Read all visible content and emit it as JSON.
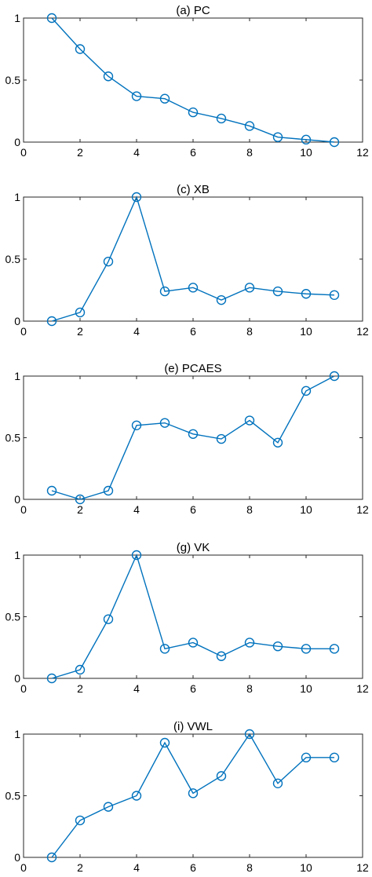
{
  "chart_data": [
    {
      "type": "line",
      "title": "(a) PC",
      "xlabel": "",
      "ylabel": "",
      "xlim": [
        0,
        12
      ],
      "ylim": [
        0,
        1
      ],
      "xticks": [
        "0",
        "2",
        "4",
        "6",
        "8",
        "10",
        "12"
      ],
      "yticks": [
        "0",
        "0.5",
        "1"
      ],
      "x": [
        1,
        2,
        3,
        4,
        5,
        6,
        7,
        8,
        9,
        10,
        11
      ],
      "values": [
        1.0,
        0.75,
        0.53,
        0.37,
        0.35,
        0.24,
        0.19,
        0.13,
        0.04,
        0.02,
        0.0
      ],
      "marker": "circle",
      "color": "#0072BD",
      "grid": false
    },
    {
      "type": "line",
      "title": "(c) XB",
      "xlabel": "",
      "ylabel": "",
      "xlim": [
        0,
        12
      ],
      "ylim": [
        0,
        1
      ],
      "xticks": [
        "0",
        "2",
        "4",
        "6",
        "8",
        "10",
        "12"
      ],
      "yticks": [
        "0",
        "0.5",
        "1"
      ],
      "x": [
        1,
        2,
        3,
        4,
        5,
        6,
        7,
        8,
        9,
        10,
        11
      ],
      "values": [
        0.0,
        0.07,
        0.48,
        1.0,
        0.24,
        0.27,
        0.17,
        0.27,
        0.24,
        0.22,
        0.21
      ],
      "marker": "circle",
      "color": "#0072BD",
      "grid": false
    },
    {
      "type": "line",
      "title": "(e) PCAES",
      "xlabel": "",
      "ylabel": "",
      "xlim": [
        0,
        12
      ],
      "ylim": [
        0,
        1
      ],
      "xticks": [
        "0",
        "2",
        "4",
        "6",
        "8",
        "10",
        "12"
      ],
      "yticks": [
        "0",
        "0.5",
        "1"
      ],
      "x": [
        1,
        2,
        3,
        4,
        5,
        6,
        7,
        8,
        9,
        10,
        11
      ],
      "values": [
        0.07,
        0.0,
        0.07,
        0.6,
        0.62,
        0.53,
        0.49,
        0.64,
        0.46,
        0.88,
        1.0
      ],
      "marker": "circle",
      "color": "#0072BD",
      "grid": false
    },
    {
      "type": "line",
      "title": "(g) VK",
      "xlabel": "",
      "ylabel": "",
      "xlim": [
        0,
        12
      ],
      "ylim": [
        0,
        1
      ],
      "xticks": [
        "0",
        "2",
        "4",
        "6",
        "8",
        "10",
        "12"
      ],
      "yticks": [
        "0",
        "0.5",
        "1"
      ],
      "x": [
        1,
        2,
        3,
        4,
        5,
        6,
        7,
        8,
        9,
        10,
        11
      ],
      "values": [
        0.0,
        0.07,
        0.48,
        1.0,
        0.24,
        0.29,
        0.18,
        0.29,
        0.26,
        0.24,
        0.24
      ],
      "marker": "circle",
      "color": "#0072BD",
      "grid": false
    },
    {
      "type": "line",
      "title": "(i) VWL",
      "xlabel": "",
      "ylabel": "",
      "xlim": [
        0,
        12
      ],
      "ylim": [
        0,
        1
      ],
      "xticks": [
        "0",
        "2",
        "4",
        "6",
        "8",
        "10",
        "12"
      ],
      "yticks": [
        "0",
        "0.5",
        "1"
      ],
      "x": [
        1,
        2,
        3,
        4,
        5,
        6,
        7,
        8,
        9,
        10,
        11
      ],
      "values": [
        0.0,
        0.3,
        0.41,
        0.5,
        0.93,
        0.52,
        0.66,
        1.0,
        0.6,
        0.81,
        0.81
      ],
      "marker": "circle",
      "color": "#0072BD",
      "grid": false
    }
  ]
}
